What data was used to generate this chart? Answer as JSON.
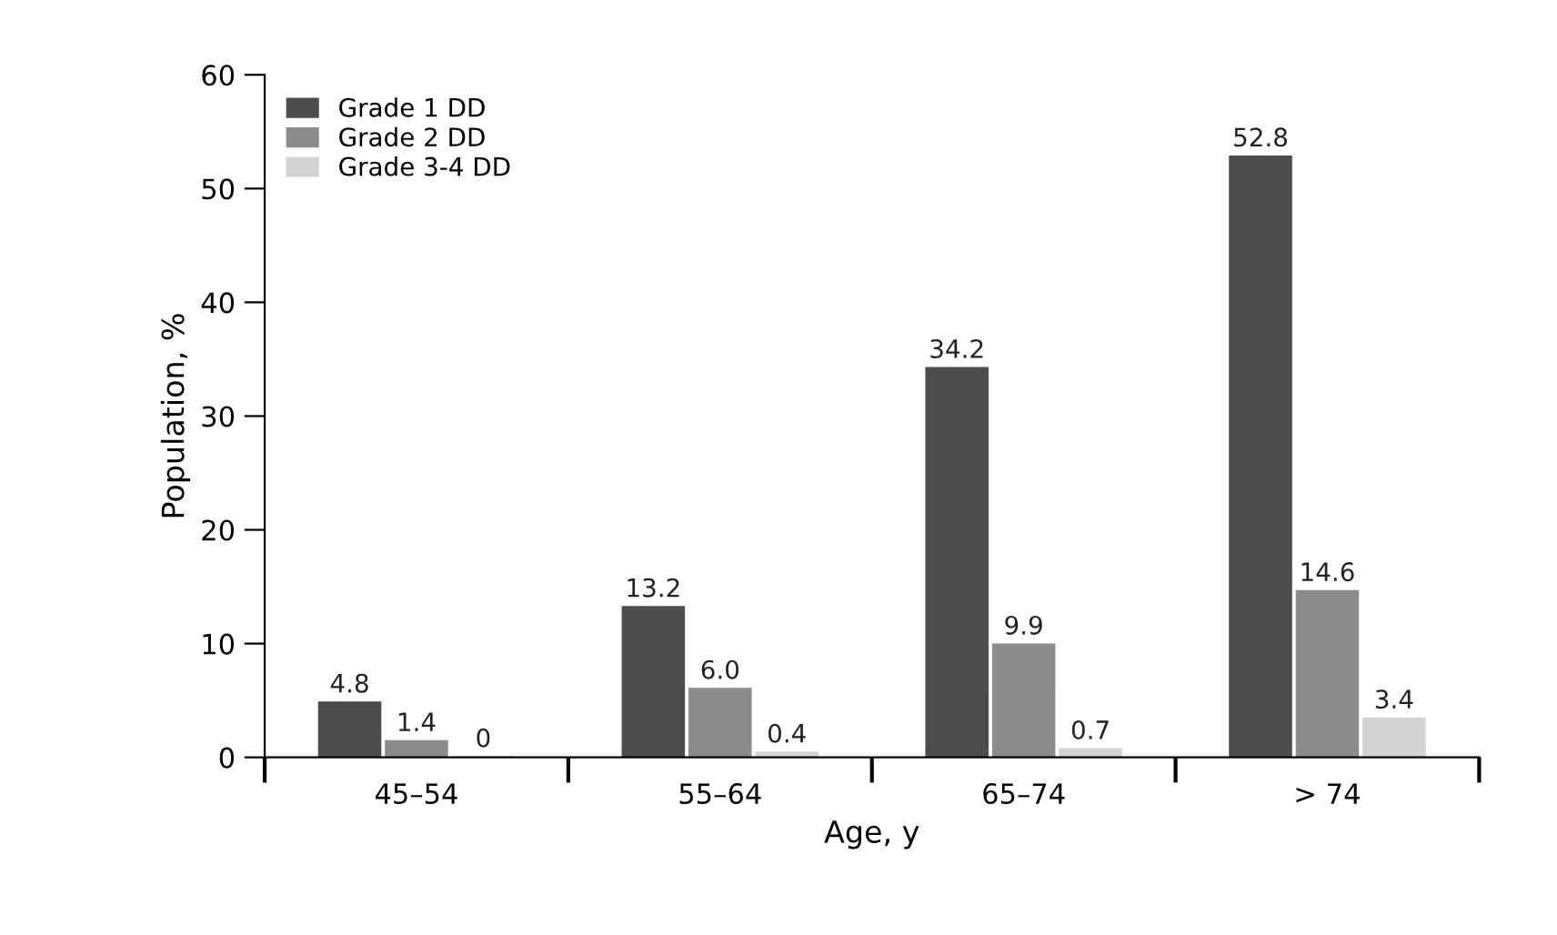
{
  "chart_data": {
    "type": "bar",
    "xlabel": "Age, y",
    "ylabel": "Population, %",
    "categories": [
      "45–54",
      "55–64",
      "65–74",
      "> 74"
    ],
    "series": [
      {
        "name": "Grade 1 DD",
        "color": "#4d4d4d",
        "values": [
          4.8,
          13.2,
          34.2,
          52.8
        ],
        "value_labels": [
          "4.8",
          "13.2",
          "34.2",
          "52.8"
        ]
      },
      {
        "name": "Grade 2 DD",
        "color": "#8c8c8c",
        "values": [
          1.4,
          6.0,
          9.9,
          14.6
        ],
        "value_labels": [
          "1.4",
          "6.0",
          "9.9",
          "14.6"
        ]
      },
      {
        "name": "Grade 3-4 DD",
        "color": "#d3d3d3",
        "values": [
          0,
          0.4,
          0.7,
          3.4
        ],
        "value_labels": [
          "0",
          "0.4",
          "0.7",
          "3.4"
        ]
      }
    ],
    "ylim": [
      0,
      60
    ],
    "yticks": [
      0,
      10,
      20,
      30,
      40,
      50,
      60
    ],
    "legend": "top left",
    "grid": false
  }
}
